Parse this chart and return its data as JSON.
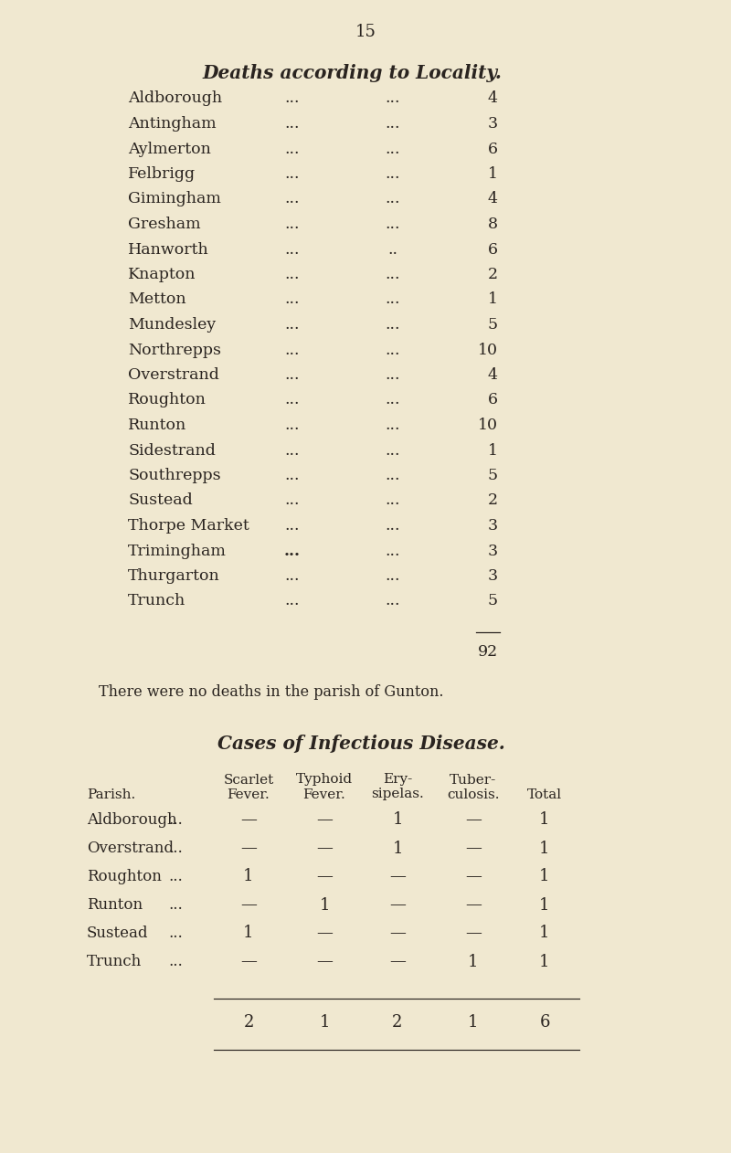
{
  "bg_color": "#f0e8d0",
  "text_color": "#2a2420",
  "page_number": "15",
  "deaths_title": "Deaths according to Locality.",
  "deaths_data": [
    [
      "Aldborough",
      4
    ],
    [
      "Antingham",
      3
    ],
    [
      "Aylmerton",
      6
    ],
    [
      "Felbrigg",
      1
    ],
    [
      "Gimingham",
      4
    ],
    [
      "Gresham",
      8
    ],
    [
      "Hanworth",
      6
    ],
    [
      "Knapton",
      2
    ],
    [
      "Metton",
      1
    ],
    [
      "Mundesley",
      5
    ],
    [
      "Northrepps",
      10
    ],
    [
      "Overstrand",
      4
    ],
    [
      "Roughton",
      6
    ],
    [
      "Runton",
      10
    ],
    [
      "Sidestrand",
      1
    ],
    [
      "Southrepps",
      5
    ],
    [
      "Sustead",
      2
    ],
    [
      "Thorpe Market",
      3
    ],
    [
      "Trimingham",
      3
    ],
    [
      "Thurgarton",
      3
    ],
    [
      "Trunch",
      5
    ]
  ],
  "deaths_total": 92,
  "gunton_note": "There were no deaths in the parish of Gunton.",
  "infectious_title": "Cases of Infectious Disease.",
  "infectious_parish_label": "Parish.",
  "infectious_data": [
    [
      "Aldborough",
      "...",
      "—",
      "—",
      "1",
      "—",
      "1"
    ],
    [
      "Overstrand",
      "...",
      "—",
      "—",
      "1",
      "—",
      "1"
    ],
    [
      "Roughton",
      "...",
      "1",
      "—",
      "—",
      "—",
      "1"
    ],
    [
      "Runton",
      "...",
      "—",
      "1",
      "—",
      "—",
      "1"
    ],
    [
      "Sustead",
      "...",
      "1",
      "—",
      "—",
      "—",
      "1"
    ],
    [
      "Trunch",
      "...",
      "—",
      "—",
      "—",
      "1",
      "1"
    ]
  ],
  "infectious_totals": [
    "2",
    "1",
    "2",
    "1",
    "6"
  ],
  "hanworth_dots2": "..",
  "trimingham_bold_dots": true
}
